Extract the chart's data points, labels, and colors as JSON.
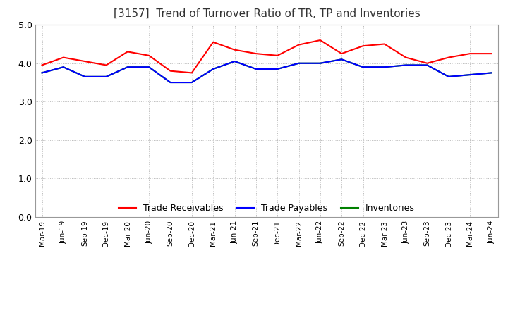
{
  "title": "[3157]  Trend of Turnover Ratio of TR, TP and Inventories",
  "x_labels": [
    "Mar-19",
    "Jun-19",
    "Sep-19",
    "Dec-19",
    "Mar-20",
    "Jun-20",
    "Sep-20",
    "Dec-20",
    "Mar-21",
    "Jun-21",
    "Sep-21",
    "Dec-21",
    "Mar-22",
    "Jun-22",
    "Sep-22",
    "Dec-22",
    "Mar-23",
    "Jun-23",
    "Sep-23",
    "Dec-23",
    "Mar-24",
    "Jun-24"
  ],
  "trade_receivables": [
    3.95,
    4.15,
    4.05,
    3.95,
    4.3,
    4.2,
    3.8,
    3.75,
    4.55,
    4.35,
    4.25,
    4.2,
    4.48,
    4.6,
    4.25,
    4.45,
    4.5,
    4.15,
    4.0,
    4.15,
    4.25,
    4.25
  ],
  "trade_payables": [
    3.75,
    3.9,
    3.65,
    3.65,
    3.9,
    3.9,
    3.5,
    3.5,
    3.85,
    4.05,
    3.85,
    3.85,
    4.0,
    4.0,
    4.1,
    3.9,
    3.9,
    3.95,
    3.95,
    3.65,
    3.7,
    3.75
  ],
  "inventories": [
    3.75,
    3.9,
    3.65,
    3.65,
    3.9,
    3.9,
    3.5,
    3.5,
    3.85,
    4.05,
    3.85,
    3.85,
    4.0,
    4.0,
    4.1,
    3.9,
    3.9,
    3.95,
    3.95,
    3.65,
    3.7,
    3.75
  ],
  "tr_color": "#FF0000",
  "tp_color": "#0000FF",
  "inv_color": "#008000",
  "ylim": [
    0.0,
    5.0
  ],
  "yticks": [
    0.0,
    1.0,
    2.0,
    3.0,
    4.0,
    5.0
  ],
  "background_color": "#FFFFFF",
  "grid_color": "#BBBBBB",
  "title_fontsize": 11,
  "legend_labels": [
    "Trade Receivables",
    "Trade Payables",
    "Inventories"
  ]
}
